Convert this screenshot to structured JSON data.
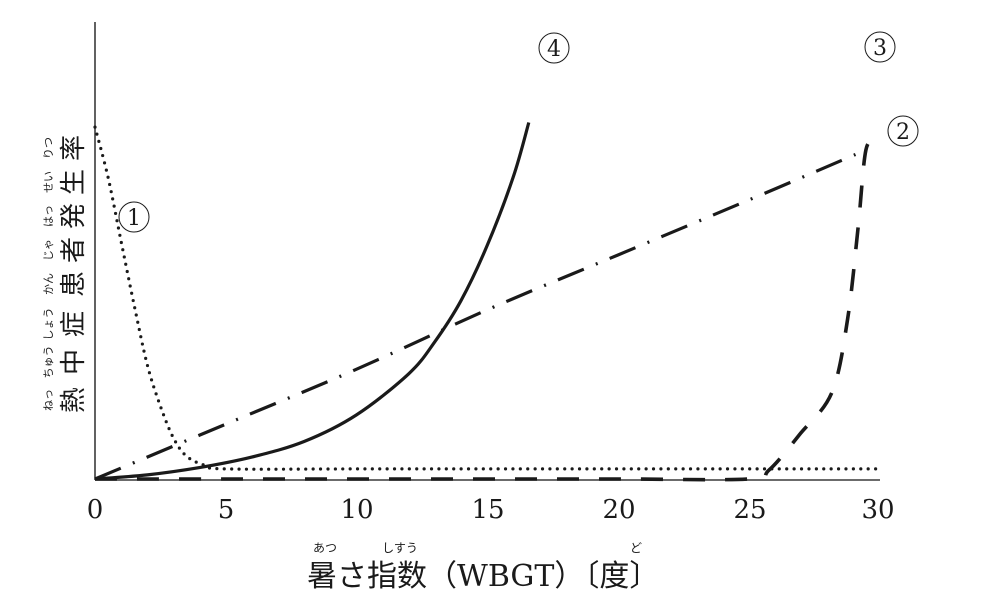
{
  "chart_data": {
    "type": "line",
    "title": "",
    "xlabel": "暑さ指数（WBGT）〔度〕",
    "xlabel_ruby": [
      {
        "base": "暑",
        "reading": "あつ"
      },
      {
        "base": "指数",
        "reading": "しすう"
      },
      {
        "base": "度",
        "reading": "ど"
      }
    ],
    "ylabel": "熱中症患者発生率",
    "ylabel_ruby": "ねっちゅうしょうかんじゃはっせいりつ",
    "xlim": [
      0,
      30
    ],
    "ylim": [
      0,
      100
    ],
    "x_ticks": [
      0,
      5,
      10,
      15,
      20,
      25,
      30
    ],
    "y_ticks": [],
    "grid": false,
    "legend": "inline circled numbers next to curves",
    "series": [
      {
        "name": "①",
        "style": "dotted",
        "description": "starts high at 0 and decays rapidly, then stays low and flat",
        "points": [
          [
            0,
            77
          ],
          [
            0.5,
            66
          ],
          [
            1,
            52
          ],
          [
            1.5,
            38
          ],
          [
            2,
            25
          ],
          [
            2.5,
            16
          ],
          [
            3,
            9
          ],
          [
            3.5,
            5
          ],
          [
            4.2,
            3
          ],
          [
            5,
            2.2
          ],
          [
            10,
            2.2
          ],
          [
            15,
            2.2
          ],
          [
            20,
            2.2
          ],
          [
            25,
            2.2
          ],
          [
            30,
            2.2
          ]
        ]
      },
      {
        "name": "②",
        "style": "dashed",
        "description": "zero until about 25, then rises sharply near 30",
        "points": [
          [
            0,
            0
          ],
          [
            5,
            0
          ],
          [
            10,
            0
          ],
          [
            15,
            0
          ],
          [
            20,
            0
          ],
          [
            25,
            0
          ],
          [
            25.8,
            2
          ],
          [
            27,
            10
          ],
          [
            28.2,
            19
          ],
          [
            28.8,
            35
          ],
          [
            29.2,
            55
          ],
          [
            29.5,
            72
          ],
          [
            29.9,
            74
          ]
        ]
      },
      {
        "name": "③",
        "style": "dash-dot",
        "description": "straight line increasing steadily from 0 to 30",
        "points": [
          [
            0,
            0
          ],
          [
            5,
            12
          ],
          [
            10,
            24
          ],
          [
            15,
            37
          ],
          [
            20,
            49
          ],
          [
            25,
            61
          ],
          [
            29.1,
            71
          ]
        ]
      },
      {
        "name": "④",
        "style": "solid",
        "description": "exponential increase, very steep after about 13",
        "points": [
          [
            0,
            0
          ],
          [
            2,
            0.9
          ],
          [
            4,
            2.5
          ],
          [
            6,
            4.8
          ],
          [
            8,
            8.2
          ],
          [
            10,
            14
          ],
          [
            12,
            23
          ],
          [
            13,
            30
          ],
          [
            14,
            39
          ],
          [
            15,
            51
          ],
          [
            16,
            66
          ],
          [
            16.6,
            78
          ]
        ]
      }
    ]
  },
  "axes": {
    "x_ticks": [
      "0",
      "5",
      "10",
      "15",
      "20",
      "25",
      "30"
    ],
    "x_label": {
      "part1": "暑",
      "part2": "さ",
      "part3": "指数",
      "part4": "（WBGT）〔",
      "part5": "度",
      "part6": "〕",
      "ruby1": "あつ",
      "ruby3": "しすう",
      "ruby5": "ど"
    },
    "y_label": {
      "chars": [
        "熱",
        "中",
        "症",
        "患",
        "者",
        "発",
        "生",
        "率"
      ],
      "ruby": [
        "ねっ",
        "ちゅう",
        "しょう",
        "かん",
        "じゃ",
        "はっ",
        "せい",
        "りつ"
      ]
    }
  },
  "labels": {
    "s1": "①",
    "s2": "②",
    "s3": "③",
    "s4": "④"
  },
  "colors": {
    "ink": "#1a1a1a",
    "background": "#ffffff"
  }
}
